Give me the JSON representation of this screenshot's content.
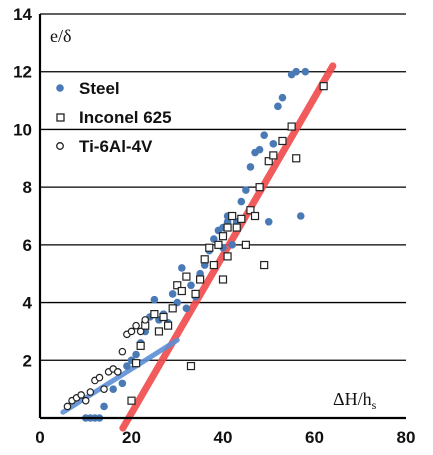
{
  "chart_data": {
    "type": "scatter",
    "ylabel": "e/δ",
    "xlabel_main": "ΔH/h",
    "xlabel_sub": "s",
    "xlim": [
      0,
      80
    ],
    "ylim": [
      0,
      14
    ],
    "xticks": [
      0,
      20,
      40,
      60,
      80
    ],
    "yticks": [
      2,
      4,
      6,
      8,
      10,
      12,
      14
    ],
    "grid": "horizontal",
    "legend_position": "top-left",
    "colors": {
      "steel": "#4a7ab5",
      "inconel": "#222222",
      "ti": "#222222",
      "red_fit": "#f04a4a",
      "blue_fit": "#5b8fd6",
      "grid": "#000000"
    },
    "series": [
      {
        "name": "Steel",
        "marker": "filled-circle",
        "points": [
          [
            10,
            0
          ],
          [
            11,
            0
          ],
          [
            12,
            0
          ],
          [
            13,
            0
          ],
          [
            14,
            0.4
          ],
          [
            16,
            1.0
          ],
          [
            17,
            1.6
          ],
          [
            18,
            1.2
          ],
          [
            19,
            1.8
          ],
          [
            20,
            2.0
          ],
          [
            21,
            2.2
          ],
          [
            22,
            2.6
          ],
          [
            23,
            3.0
          ],
          [
            24,
            3.5
          ],
          [
            25,
            4.1
          ],
          [
            26,
            3.4
          ],
          [
            27,
            3.6
          ],
          [
            28,
            3.3
          ],
          [
            29,
            4.3
          ],
          [
            30,
            4.0
          ],
          [
            31,
            5.2
          ],
          [
            32,
            3.8
          ],
          [
            33,
            4.6
          ],
          [
            34,
            4.2
          ],
          [
            35,
            5.0
          ],
          [
            36,
            5.3
          ],
          [
            37,
            5.8
          ],
          [
            38,
            6.2
          ],
          [
            39,
            6.5
          ],
          [
            40,
            6.6
          ],
          [
            41,
            7.0
          ],
          [
            42,
            6.0
          ],
          [
            43,
            6.8
          ],
          [
            44,
            7.5
          ],
          [
            45,
            7.9
          ],
          [
            46,
            8.7
          ],
          [
            47,
            9.2
          ],
          [
            48,
            9.3
          ],
          [
            49,
            9.8
          ],
          [
            50,
            6.8
          ],
          [
            51,
            9.5
          ],
          [
            52,
            10.8
          ],
          [
            53,
            11.1
          ],
          [
            55,
            11.9
          ],
          [
            56,
            12.0
          ],
          [
            57,
            7.0
          ],
          [
            58,
            12.0
          ],
          [
            40,
            5.9
          ],
          [
            41,
            6.8
          ]
        ]
      },
      {
        "name": "Inconel 625",
        "marker": "open-square",
        "points": [
          [
            20,
            0.6
          ],
          [
            21,
            1.9
          ],
          [
            22,
            2.5
          ],
          [
            23,
            3.2
          ],
          [
            25,
            3.6
          ],
          [
            26,
            3.0
          ],
          [
            27,
            3.5
          ],
          [
            28,
            3.2
          ],
          [
            29,
            3.8
          ],
          [
            30,
            4.6
          ],
          [
            31,
            4.4
          ],
          [
            32,
            4.9
          ],
          [
            33,
            1.8
          ],
          [
            34,
            4.3
          ],
          [
            35,
            4.8
          ],
          [
            36,
            5.5
          ],
          [
            37,
            5.9
          ],
          [
            38,
            5.3
          ],
          [
            39,
            6.0
          ],
          [
            40,
            6.3
          ],
          [
            41,
            6.6
          ],
          [
            42,
            7.0
          ],
          [
            43,
            6.6
          ],
          [
            44,
            6.9
          ],
          [
            45,
            6.0
          ],
          [
            46,
            7.2
          ],
          [
            47,
            7.0
          ],
          [
            48,
            8.0
          ],
          [
            49,
            5.3
          ],
          [
            50,
            8.9
          ],
          [
            51,
            9.1
          ],
          [
            53,
            9.6
          ],
          [
            55,
            10.1
          ],
          [
            56,
            9.0
          ],
          [
            62,
            11.5
          ],
          [
            40,
            4.8
          ],
          [
            41,
            5.6
          ]
        ]
      },
      {
        "name": "Ti-6Al-4V",
        "marker": "open-circle",
        "points": [
          [
            6,
            0.4
          ],
          [
            7,
            0.6
          ],
          [
            8,
            0.7
          ],
          [
            9,
            0.8
          ],
          [
            10,
            0.6
          ],
          [
            11,
            0.9
          ],
          [
            12,
            1.3
          ],
          [
            13,
            1.4
          ],
          [
            14,
            1.0
          ],
          [
            15,
            1.6
          ],
          [
            16,
            1.7
          ],
          [
            17,
            1.6
          ],
          [
            18,
            2.3
          ],
          [
            19,
            2.9
          ],
          [
            20,
            3.0
          ],
          [
            21,
            3.2
          ],
          [
            22,
            3.0
          ],
          [
            23,
            3.4
          ]
        ]
      }
    ],
    "fit_lines": [
      {
        "name": "red-fit-line",
        "from": [
          15,
          -1.2
        ],
        "to": [
          64,
          12.2
        ]
      },
      {
        "name": "blue-fit-line",
        "from": [
          5,
          0.2
        ],
        "to": [
          30,
          2.7
        ]
      }
    ]
  }
}
